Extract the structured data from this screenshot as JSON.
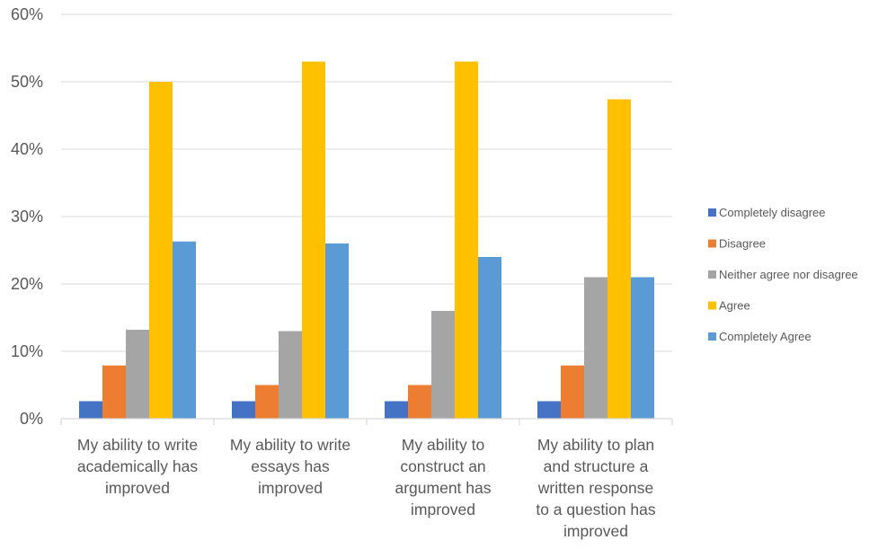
{
  "chart_data": {
    "type": "bar",
    "categories": [
      [
        "My ability to write",
        "academically has",
        "improved"
      ],
      [
        "My ability to write",
        "essays has",
        "improved"
      ],
      [
        "My ability to",
        "construct an",
        "argument has",
        "improved"
      ],
      [
        "My ability to plan",
        "and structure a",
        "written response",
        "to a question has",
        "improved"
      ]
    ],
    "series": [
      {
        "name": "Completely disagree",
        "color": "#4472C4",
        "values": [
          2.6,
          2.6,
          2.6,
          2.6
        ]
      },
      {
        "name": "Disagree",
        "color": "#ED7D31",
        "values": [
          7.9,
          5.0,
          5.0,
          7.9
        ]
      },
      {
        "name": "Neither agree nor disagree",
        "color": "#A5A5A5",
        "values": [
          13.2,
          13.0,
          16.0,
          21.0
        ]
      },
      {
        "name": "Agree",
        "color": "#FFC000",
        "values": [
          50.0,
          53.0,
          53.0,
          47.4
        ]
      },
      {
        "name": "Completely Agree",
        "color": "#5B9BD5",
        "values": [
          26.3,
          26.0,
          24.0,
          21.0
        ]
      }
    ],
    "y_ticks": [
      "0%",
      "10%",
      "20%",
      "30%",
      "40%",
      "50%",
      "60%"
    ],
    "ylim": [
      0,
      60
    ],
    "grid": true,
    "legend_position": "right"
  }
}
